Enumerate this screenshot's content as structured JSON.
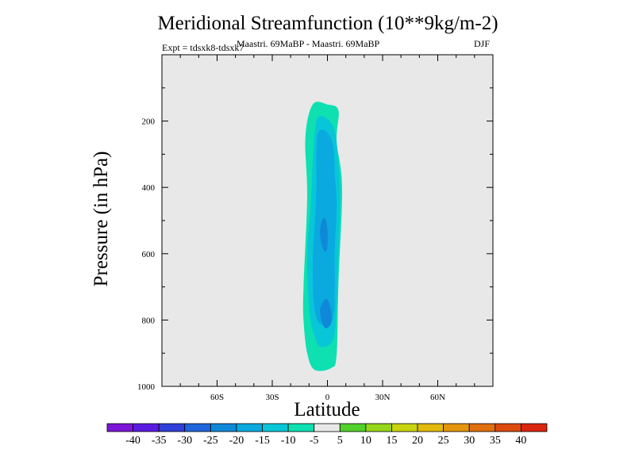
{
  "chart_data": {
    "type": "contour",
    "title": "Meridional Streamfunction (10**9kg/m-2)",
    "subtitle": "Maastri.  69MaBP - Maastri.  69MaBP",
    "season": "DJF",
    "experiment": "Expt = tdsxk8-tdsxk7",
    "xlabel": "Latitude",
    "ylabel": "Pressure (in hPa)",
    "xlim": [
      -90,
      90
    ],
    "ylim": [
      1000,
      0
    ],
    "x_ticks": [
      -60,
      -30,
      0,
      30,
      60
    ],
    "x_tick_labels": [
      "60S",
      "30S",
      "0",
      "30N",
      "60N"
    ],
    "y_ticks": [
      200,
      400,
      600,
      800,
      1000
    ],
    "y_tick_labels": [
      "200",
      "400",
      "600",
      "800",
      "1000"
    ],
    "background_color": "#e8e8e8",
    "levels": [
      -40,
      -35,
      -30,
      -25,
      -20,
      -15,
      -10,
      -5,
      5,
      10,
      15,
      20,
      25,
      30,
      35,
      40
    ],
    "colors": [
      "#7d15d8",
      "#5a1be0",
      "#2f3fd9",
      "#1f66dc",
      "#1088d8",
      "#0aa9df",
      "#08c6d8",
      "#0ee0b2",
      "#e8e8e8",
      "#52d12b",
      "#97d61a",
      "#c8d410",
      "#e2ba0c",
      "#e2960b",
      "#e0700c",
      "#dd4a0e",
      "#d9260f"
    ],
    "contours": [
      {
        "level": -5,
        "color": "#0ee0b2",
        "points": [
          [
            -8,
            150
          ],
          [
            0,
            150
          ],
          [
            6,
            168
          ],
          [
            5,
            260
          ],
          [
            8,
            400
          ],
          [
            6,
            690
          ],
          [
            5,
            905
          ],
          [
            2,
            945
          ],
          [
            -7,
            950
          ],
          [
            -11,
            900
          ],
          [
            -13,
            800
          ],
          [
            -13,
            700
          ],
          [
            -11,
            430
          ],
          [
            -12,
            250
          ]
        ]
      },
      {
        "level": -10,
        "color": "#08c6d8",
        "points": [
          [
            -6,
            200
          ],
          [
            -1,
            190
          ],
          [
            4,
            230
          ],
          [
            6,
            330
          ],
          [
            7,
            420
          ],
          [
            6,
            600
          ],
          [
            5,
            760
          ],
          [
            3,
            860
          ],
          [
            -4,
            880
          ],
          [
            -8,
            830
          ],
          [
            -10,
            760
          ],
          [
            -11,
            600
          ],
          [
            -9,
            450
          ],
          [
            -8,
            330
          ]
        ]
      },
      {
        "level": -15,
        "color": "#0aa9df",
        "points": [
          [
            -5,
            235
          ],
          [
            -1,
            230
          ],
          [
            3,
            270
          ],
          [
            4,
            360
          ],
          [
            5,
            460
          ],
          [
            4,
            580
          ],
          [
            4,
            700
          ],
          [
            3,
            795
          ],
          [
            -3,
            815
          ],
          [
            -7,
            770
          ],
          [
            -8,
            640
          ],
          [
            -7,
            520
          ],
          [
            -6,
            400
          ],
          [
            -6,
            300
          ]
        ]
      },
      {
        "level": -20,
        "color": "#1088d8",
        "points": [
          [
            -3,
            500
          ],
          [
            -1,
            495
          ],
          [
            0,
            530
          ],
          [
            0,
            575
          ],
          [
            -1,
            595
          ],
          [
            -3,
            575
          ],
          [
            -4,
            535
          ]
        ]
      },
      {
        "level": -20,
        "color": "#1088d8",
        "points": [
          [
            -2,
            742
          ],
          [
            0,
            738
          ],
          [
            2,
            770
          ],
          [
            2,
            810
          ],
          [
            -1,
            825
          ],
          [
            -3,
            805
          ],
          [
            -4,
            770
          ]
        ]
      }
    ]
  }
}
